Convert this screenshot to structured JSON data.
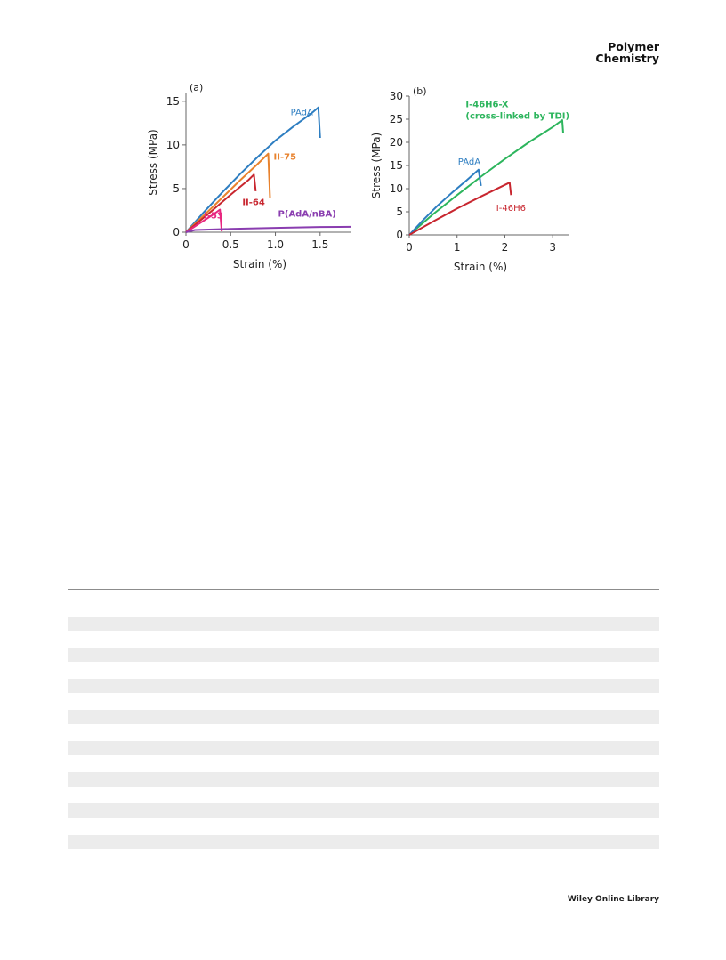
{
  "header": {
    "journal_line1": "Polymer",
    "journal_line2": "Chemistry"
  },
  "footer": {
    "publisher": "Wiley Online Library"
  },
  "table": {
    "stripe_count": 8
  },
  "chart_data": [
    {
      "type": "line",
      "panel_label": "(a)",
      "xlabel": "Strain (%)",
      "ylabel": "Stress (MPa)",
      "xlim": [
        0,
        1.85
      ],
      "ylim": [
        0,
        16
      ],
      "xticks": [
        0,
        0.5,
        1,
        1.5
      ],
      "xtick_labels": [
        "0",
        "0.5",
        "1.0",
        "1.5"
      ],
      "yticks": [
        0,
        5,
        10,
        15
      ],
      "ytick_labels": [
        "0",
        "5",
        "10",
        "15"
      ],
      "grid": false,
      "series": [
        {
          "name": "PAdA",
          "color": "#2e7ec1",
          "label_at": [
            1.17,
            13.4
          ],
          "x": [
            0,
            0.2,
            0.4,
            0.6,
            0.8,
            1.0,
            1.2,
            1.4,
            1.48,
            1.5
          ],
          "y": [
            0,
            2.3,
            4.5,
            6.6,
            8.6,
            10.5,
            12.1,
            13.6,
            14.3,
            10.8
          ]
        },
        {
          "name": "II-75",
          "color": "#e8822d",
          "label_at": [
            0.98,
            8.3
          ],
          "x": [
            0,
            0.3,
            0.6,
            0.8,
            0.92,
            0.94
          ],
          "y": [
            0,
            2.9,
            5.9,
            7.8,
            9.0,
            3.9
          ]
        },
        {
          "name": "II-64",
          "color": "#c8262f",
          "label_at": [
            0.63,
            3.1
          ],
          "x": [
            0,
            0.25,
            0.5,
            0.7,
            0.76,
            0.78
          ],
          "y": [
            0,
            2.1,
            4.3,
            6.0,
            6.6,
            4.7
          ]
        },
        {
          "name": "I-53",
          "color": "#e8267f",
          "label_at": [
            0.2,
            1.6
          ],
          "x": [
            0,
            0.15,
            0.3,
            0.38,
            0.4
          ],
          "y": [
            0,
            1.0,
            2.0,
            2.6,
            0.1
          ]
        },
        {
          "name": "P(AdA/nBA)",
          "color": "#8a3db0",
          "label_at": [
            1.03,
            1.8
          ],
          "x": [
            0,
            0.1,
            0.5,
            1.0,
            1.5,
            1.85
          ],
          "y": [
            0,
            0.25,
            0.38,
            0.5,
            0.6,
            0.62
          ]
        }
      ]
    },
    {
      "type": "line",
      "panel_label": "(b)",
      "xlabel": "Strain (%)",
      "ylabel": "Stress (MPa)",
      "xlim": [
        0,
        3.35
      ],
      "ylim": [
        0,
        30
      ],
      "xticks": [
        0,
        1,
        2,
        3
      ],
      "xtick_labels": [
        "0",
        "1",
        "2",
        "3"
      ],
      "yticks": [
        0,
        5,
        10,
        15,
        20,
        25,
        30
      ],
      "ytick_labels": [
        "0",
        "5",
        "10",
        "15",
        "20",
        "25",
        "30"
      ],
      "grid": false,
      "series": [
        {
          "name": "I-46H6-X",
          "name_line2": "(cross-linked by TDI)",
          "color": "#2db55d",
          "label_at": [
            1.18,
            27.6
          ],
          "x": [
            0,
            0.5,
            1.0,
            1.5,
            2.0,
            2.5,
            3.0,
            3.2,
            3.22
          ],
          "y": [
            0,
            4.5,
            8.6,
            12.6,
            16.4,
            20.0,
            23.3,
            24.8,
            22.0
          ]
        },
        {
          "name": "PAdA",
          "color": "#2e7ec1",
          "label_at": [
            1.02,
            15.2
          ],
          "x": [
            0,
            0.3,
            0.6,
            0.9,
            1.2,
            1.45,
            1.5
          ],
          "y": [
            0,
            3.3,
            6.4,
            9.2,
            11.8,
            14.1,
            10.6
          ]
        },
        {
          "name": "I-46H6",
          "color": "#c8262f",
          "label_at": [
            1.82,
            5.2
          ],
          "x": [
            0,
            0.5,
            1.0,
            1.5,
            2.1,
            2.13
          ],
          "y": [
            0,
            2.9,
            5.7,
            8.3,
            11.3,
            8.6
          ]
        }
      ]
    }
  ]
}
